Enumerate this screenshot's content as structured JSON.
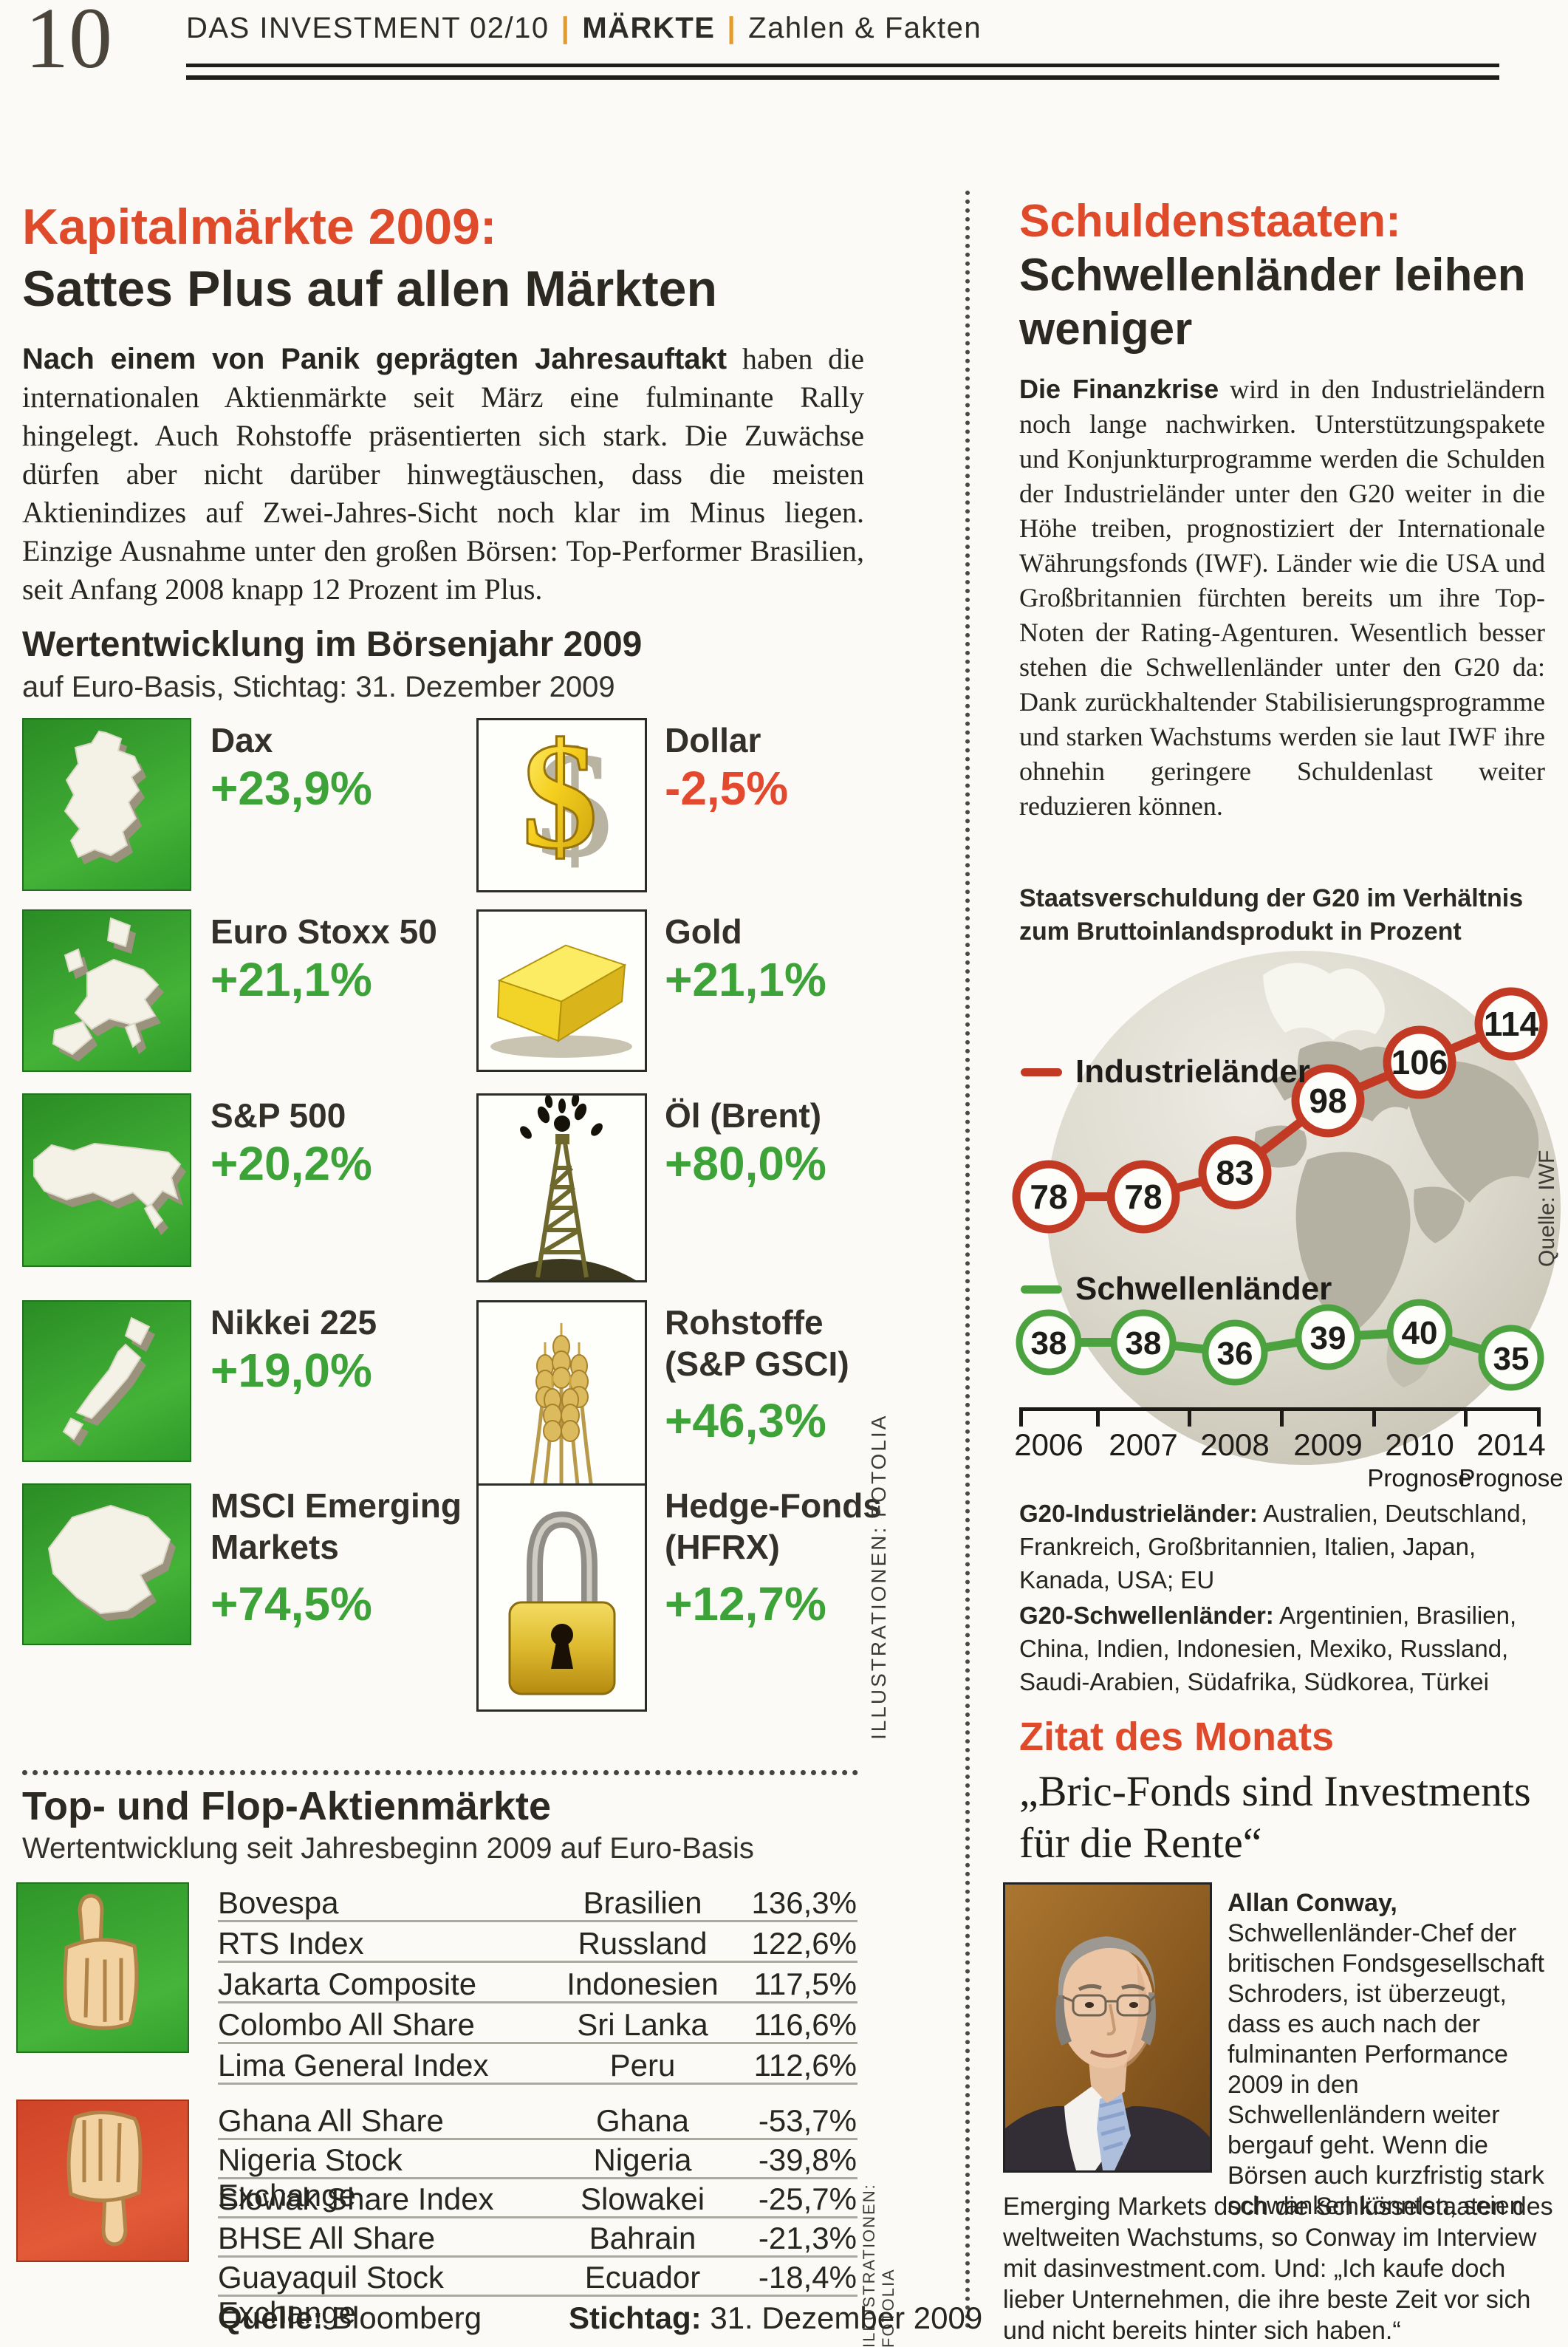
{
  "colors": {
    "accent_red": "#df4a2b",
    "positive_green": "#3da339",
    "negative_red": "#e2492e",
    "chart_red": "#c23a24",
    "chart_green": "#4ca23f",
    "icon_green_bg": "#3aa630",
    "icon_red_bg": "#d64a2e",
    "header_pipe_orange": "#e59b2b"
  },
  "page_number": "10",
  "header": {
    "magazine": "DAS INVESTMENT 02/10",
    "section": "MÄRKTE",
    "subsection": "Zahlen & Fakten"
  },
  "left": {
    "article": {
      "title_red": "Kapitalmärkte 2009:",
      "title_black": "Sattes Plus auf allen Märkten",
      "lead": "Nach einem von Panik geprägten Jahresauftakt",
      "body": " haben die internationalen Aktienmärkte seit März eine fulminante Rally hingelegt. Auch Rohstoffe präsentierten sich stark. Die Zuwächse dürfen aber nicht darüber hinwegtäuschen, dass die meisten Aktienindizes auf Zwei-Jahres-Sicht noch klar im Minus liegen. Einzige Ausnahme unter den großen Börsen: Top-Performer Brasilien, seit Anfang 2008 knapp 12 Prozent im Plus."
    },
    "performance": {
      "title": "Wertentwicklung im Börsenjahr 2009",
      "subtitle": "auf Euro-Basis, Stichtag: 31. Dezember 2009",
      "items": [
        {
          "label": "Dax",
          "value": "+23,9%",
          "direction": "up",
          "icon": "germany-map"
        },
        {
          "label": "Dollar",
          "value": "-2,5%",
          "direction": "down",
          "icon": "dollar-sign"
        },
        {
          "label": "Euro Stoxx 50",
          "value": "+21,1%",
          "direction": "up",
          "icon": "europe-map"
        },
        {
          "label": "Gold",
          "value": "+21,1%",
          "direction": "up",
          "icon": "gold-bar"
        },
        {
          "label": "S&P 500",
          "value": "+20,2%",
          "direction": "up",
          "icon": "usa-map"
        },
        {
          "label": "Öl (Brent)",
          "value": "+80,0%",
          "direction": "up",
          "icon": "oil-derrick"
        },
        {
          "label": "Nikkei 225",
          "value": "+19,0%",
          "direction": "up",
          "icon": "japan-map"
        },
        {
          "label": "Rohstoffe (S&P GSCI)",
          "value": "+46,3%",
          "direction": "up",
          "icon": "wheat"
        },
        {
          "label": "MSCI Emerging Markets",
          "value": "+74,5%",
          "direction": "up",
          "icon": "china-map"
        },
        {
          "label": "Hedge-Fonds (HFRX)",
          "value": "+12,7%",
          "direction": "up",
          "icon": "padlock"
        }
      ]
    },
    "table": {
      "title": "Top- und Flop-Aktienmärkte",
      "subtitle": "Wertentwicklung seit Jahresbeginn 2009 auf Euro-Basis",
      "top": [
        {
          "index": "Bovespa",
          "country": "Brasilien",
          "value": "136,3%"
        },
        {
          "index": "RTS Index",
          "country": "Russland",
          "value": "122,6%"
        },
        {
          "index": "Jakarta Composite",
          "country": "Indonesien",
          "value": "117,5%"
        },
        {
          "index": "Colombo All Share",
          "country": "Sri Lanka",
          "value": "116,6%"
        },
        {
          "index": "Lima General Index",
          "country": "Peru",
          "value": "112,6%"
        }
      ],
      "flop": [
        {
          "index": "Ghana All Share",
          "country": "Ghana",
          "value": "-53,7%"
        },
        {
          "index": "Nigeria Stock Exchange",
          "country": "Nigeria",
          "value": "-39,8%"
        },
        {
          "index": "Slowak Share Index",
          "country": "Slowakei",
          "value": "-25,7%"
        },
        {
          "index": "BHSE All Share",
          "country": "Bahrain",
          "value": "-21,3%"
        },
        {
          "index": "Guayaquil Stock Exchange",
          "country": "Ecuador",
          "value": "-18,4%"
        }
      ],
      "source_label": "Quelle:",
      "source": " Bloomberg",
      "date_label": "Stichtag:",
      "date": " 31. Dezember 2009"
    },
    "credit": "ILLUSTRATIONEN: FOTOLIA"
  },
  "right": {
    "article": {
      "title_red": "Schuldenstaaten:",
      "title_black": "Schwellenländer leihen weniger",
      "lead": "Die Finanzkrise",
      "body": " wird in den Industrieländern noch lange nachwirken. Unterstützungspakete und Konjunkturprogramme werden die Schulden der Industrieländer unter den G20 weiter in die Höhe treiben, prognostiziert der Internationale Währungsfonds (IWF). Länder wie die USA und Großbritannien fürchten bereits um ihre Top-Noten der Rating-Agenturen. Wesentlich besser stehen die Schwellenländer unter den G20 da: Dank zurückhaltender Stabilisierungsprogramme und starken Wachstums werden sie laut IWF ihre ohnehin geringere Schuldenlast weiter reduzieren können."
    },
    "g20": {
      "industrial_label": "G20-Industrieländer:",
      "industrial": " Australien, Deutschland, Frankreich, Großbritannien, Italien, Japan, Kanada, USA; EU",
      "emerging_label": "G20-Schwellenländer:",
      "emerging": " Argentinien, Brasilien, China, Indien, Indonesien, Mexiko, Russland, Saudi-Arabien, Südafrika, Südkorea, Türkei"
    },
    "quote": {
      "kicker": "Zitat des Monats",
      "text": "„Bric-Fonds sind Investments für die Rente“",
      "author_lead": "Allan Conway,",
      "bio_beside": " Schwellenländer-Chef der britischen Fondsgesellschaft Schroders, ist überzeugt, dass es auch nach der fulminanten Performance 2009 in den Schwellenländern weiter bergauf geht. Wenn die Börsen auch kurzfristig stark schwanken könnten, seien",
      "bio_below": "Emerging Markets doch die Schlüsselstaaten des weltweiten Wachstums, so Conway im Interview mit dasinvestment.com. Und: „Ich kaufe doch lieber Unternehmen, die ihre beste Zeit vor sich und nicht bereits hinter sich haben.“"
    }
  },
  "chart_data": {
    "type": "line",
    "title": "Staatsverschuldung der G20 im Verhältnis zum Bruttoinlandsprodukt in Prozent",
    "x": [
      "2006",
      "2007",
      "2008",
      "2009",
      "2010",
      "2014"
    ],
    "x_sublabels": [
      "",
      "",
      "",
      "",
      "Prognose",
      "Prognose"
    ],
    "series": [
      {
        "name": "Industrieländer",
        "color": "#c23a24",
        "values": [
          78,
          78,
          83,
          98,
          106,
          114
        ]
      },
      {
        "name": "Schwellenländer",
        "color": "#4ca23f",
        "values": [
          38,
          38,
          36,
          39,
          40,
          35
        ]
      }
    ],
    "xlabel": "",
    "ylabel": "",
    "grid": false,
    "legend_position": "inside-left",
    "source": "Quelle: IWF"
  }
}
